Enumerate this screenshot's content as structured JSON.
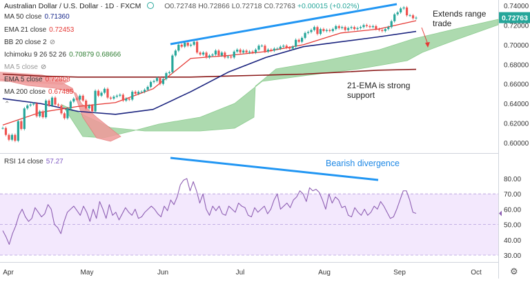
{
  "header": {
    "symbol": "Australian Dollar / U.S. Dollar · 1D · FXCM",
    "ohlc": "O0.72748 H0.72866 L0.72718 C0.72763",
    "change": "+0.00015 (+0.02%)"
  },
  "indicators": [
    {
      "label": "MA 50 close",
      "value": "0.71360",
      "color": "#1a2a8c",
      "hidden": false
    },
    {
      "label": "EMA 21 close",
      "value": "0.72453",
      "color": "#e53935",
      "hidden": false
    },
    {
      "label": "BB 20 close 2",
      "value": "",
      "color": "#555555",
      "hidden": true
    },
    {
      "label": "Ichimoku 9 26 52 26",
      "value": "0.70879  0.68666",
      "color": "#2e7d32",
      "hidden": false
    },
    {
      "label": "MA 5 close",
      "value": "",
      "color": "#999999",
      "hidden": true
    },
    {
      "label": "EMA 5 close",
      "value": "0.72868",
      "color": "#e53935",
      "hidden": false
    },
    {
      "label": "MA 200 close",
      "value": "0.67485",
      "color": "#e53935",
      "hidden": false
    }
  ],
  "rsi_label": {
    "label": "RSI 14 close",
    "value": "57.27",
    "color": "#7e57c2"
  },
  "price_badge": "0.72763",
  "annotations": {
    "extends_range": [
      "Extends range",
      "trade"
    ],
    "ema_support": [
      "21-EMA is strong",
      "support"
    ],
    "bearish_divergence": "Bearish divergence"
  },
  "colors": {
    "up": "#26a69a",
    "down": "#ef5350",
    "ema21": "#e53935",
    "ma50": "#1a237e",
    "ma200": "#8b1a1a",
    "ichimoku_bull": "#a5d6a7",
    "ichimoku_bear": "#ef9a9a",
    "rsi": "#8e5fb3",
    "rsi_band": "#f3e8fd",
    "trendline": "#2196f3",
    "badge": "#26a69a"
  },
  "chart_data": [
    {
      "type": "candlestick",
      "title": "Australian Dollar / U.S. Dollar · 1D · FXCM",
      "x_ticks": [
        "Apr",
        "May",
        "Jun",
        "Jul",
        "Aug",
        "Sep",
        "Oct"
      ],
      "y_ticks": [
        "0.74000",
        "0.72000",
        "0.70000",
        "0.68000",
        "0.66000",
        "0.64000",
        "0.62000",
        "0.60000"
      ],
      "ylim": [
        0.595,
        0.745
      ],
      "series": [
        {
          "name": "Close",
          "values": [
            0.615,
            0.608,
            0.603,
            0.608,
            0.602,
            0.622,
            0.614,
            0.635,
            0.638,
            0.639,
            0.64,
            0.627,
            0.632,
            0.626,
            0.643,
            0.638,
            0.646,
            0.639,
            0.638,
            0.63,
            0.625,
            0.635,
            0.642,
            0.645,
            0.644,
            0.648,
            0.643,
            0.635,
            0.638,
            0.632,
            0.653,
            0.648,
            0.651,
            0.655,
            0.646,
            0.645,
            0.647,
            0.648,
            0.649,
            0.643,
            0.645,
            0.644,
            0.652,
            0.65,
            0.652,
            0.652,
            0.654,
            0.657,
            0.662,
            0.663,
            0.666,
            0.66,
            0.665,
            0.671,
            0.672,
            0.689,
            0.694,
            0.7,
            0.698,
            0.702,
            0.699,
            0.7,
            0.703,
            0.692,
            0.69,
            0.692,
            0.687,
            0.689,
            0.69,
            0.694,
            0.689,
            0.692,
            0.687,
            0.688,
            0.687,
            0.693,
            0.695,
            0.692,
            0.694,
            0.692,
            0.693,
            0.692,
            0.695,
            0.699,
            0.699,
            0.693,
            0.695,
            0.694,
            0.696,
            0.696,
            0.698,
            0.699,
            0.697,
            0.696,
            0.698,
            0.705,
            0.703,
            0.707,
            0.712,
            0.713,
            0.715,
            0.718,
            0.711,
            0.716,
            0.714,
            0.715,
            0.714,
            0.716,
            0.719,
            0.717,
            0.718,
            0.715,
            0.717,
            0.718,
            0.716,
            0.717,
            0.718,
            0.72,
            0.719,
            0.718,
            0.719,
            0.716,
            0.715,
            0.714,
            0.716,
            0.718,
            0.724,
            0.731,
            0.733,
            0.737,
            0.738,
            0.73,
            0.73,
            0.727,
            0.7276
          ]
        },
        {
          "name": "EMA 21 close",
          "values_sampled": [
            0.618,
            0.631,
            0.637,
            0.641,
            0.655,
            0.686,
            0.689,
            0.693,
            0.7,
            0.712,
            0.716,
            0.7245
          ]
        },
        {
          "name": "MA 50 close",
          "values_sampled": [
            0.645,
            0.64,
            0.632,
            0.629,
            0.634,
            0.652,
            0.672,
            0.687,
            0.698,
            0.703,
            0.708,
            0.7136
          ]
        },
        {
          "name": "MA 200 close",
          "values_sampled": [
            0.67,
            0.668,
            0.667,
            0.667,
            0.667,
            0.667,
            0.668,
            0.669,
            0.67,
            0.672,
            0.674,
            0.6749
          ]
        }
      ],
      "last_price": 0.72763
    },
    {
      "type": "line",
      "title": "RSI 14 close",
      "y_ticks": [
        "80.00",
        "70.00",
        "60.00",
        "50.00",
        "40.00",
        "30.00"
      ],
      "ylim": [
        27,
        82
      ],
      "band": [
        30,
        70
      ],
      "series": [
        {
          "name": "RSI 14 close",
          "values": [
            46,
            42,
            37,
            44,
            49,
            56,
            60,
            55,
            52,
            54,
            61,
            58,
            55,
            57,
            63,
            60,
            50,
            48,
            44,
            52,
            58,
            60,
            62,
            59,
            56,
            62,
            58,
            52,
            60,
            54,
            65,
            60,
            54,
            63,
            56,
            58,
            53,
            57,
            61,
            58,
            56,
            60,
            54,
            55,
            58,
            60,
            62,
            60,
            57,
            55,
            62,
            59,
            66,
            63,
            68,
            76,
            79,
            80,
            72,
            78,
            72,
            64,
            70,
            60,
            56,
            62,
            59,
            62,
            57,
            56,
            62,
            60,
            58,
            64,
            62,
            61,
            56,
            55,
            61,
            58,
            60,
            62,
            57,
            60,
            66,
            70,
            60,
            62,
            64,
            61,
            66,
            68,
            72,
            70,
            65,
            74,
            72,
            73,
            71,
            66,
            60,
            70,
            64,
            68,
            66,
            61,
            62,
            56,
            55,
            61,
            58,
            56,
            60,
            56,
            58,
            62,
            60,
            65,
            62,
            58,
            54,
            55,
            60,
            66,
            72,
            72,
            66,
            58,
            57.27
          ]
        }
      ],
      "last_value": 57.27
    }
  ]
}
